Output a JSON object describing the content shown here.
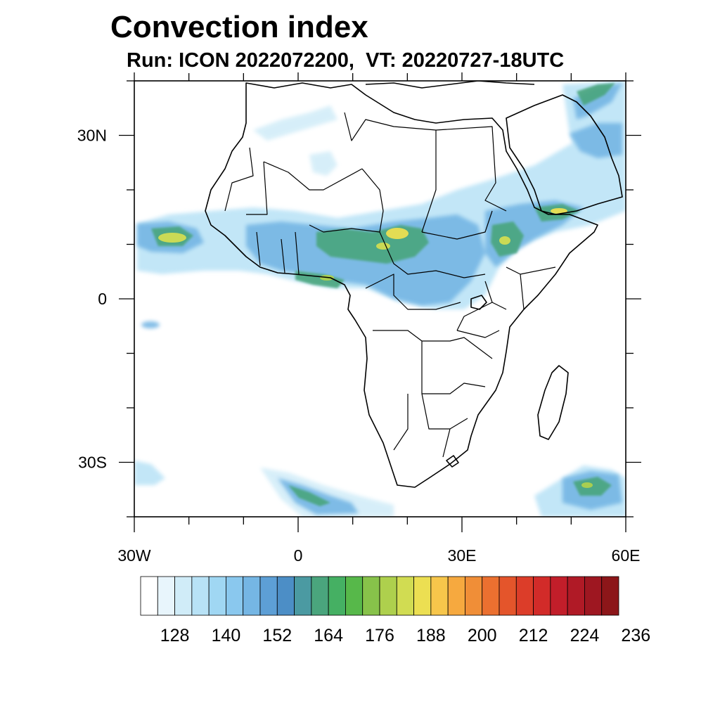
{
  "title": "Convection index",
  "subtitle": "Run: ICON 2022072200,  VT: 20220727-18UTC",
  "map": {
    "lon_range": [
      -30,
      60
    ],
    "lat_range": [
      -40,
      40
    ],
    "lon_ticks": [
      {
        "value": -30,
        "label": "30W"
      },
      {
        "value": 0,
        "label": "0"
      },
      {
        "value": 30,
        "label": "30E"
      },
      {
        "value": 60,
        "label": "60E"
      }
    ],
    "lat_ticks": [
      {
        "value": 30,
        "label": "30N"
      },
      {
        "value": 0,
        "label": "0"
      },
      {
        "value": -30,
        "label": "30S"
      }
    ]
  },
  "colorbar": {
    "colors": [
      "#ffffff",
      "#e8f5fc",
      "#d0ecf8",
      "#b8e2f6",
      "#a0d7f3",
      "#8ac8ee",
      "#75b6e4",
      "#5d9fd6",
      "#4c8ec6",
      "#4b9aa2",
      "#4aa57d",
      "#45b063",
      "#57b84a",
      "#87c24a",
      "#aed04d",
      "#d1dc52",
      "#ecdf52",
      "#f7c64b",
      "#f6a93f",
      "#f08e37",
      "#eb7030",
      "#e4552b",
      "#dc3d29",
      "#d22b29",
      "#c21e2a",
      "#b01a26",
      "#9e1721",
      "#8c1619"
    ],
    "labels": [
      "128",
      "140",
      "152",
      "164",
      "176",
      "188",
      "200",
      "212",
      "224",
      "236"
    ],
    "label_start_box": 2,
    "label_step": 3
  },
  "colors": {
    "land_outline": "#000000",
    "convection_blue": "#8ac8ee",
    "convection_green": "#4aa57d",
    "convection_yellow": "#ecdf52"
  }
}
